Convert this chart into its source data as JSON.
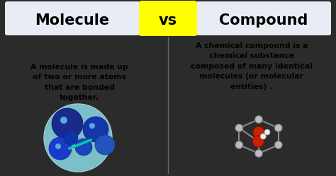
{
  "bg_color": "#2b2b2b",
  "left_header_bg": "#e8ecf5",
  "right_header_bg": "#e8ecf5",
  "vs_bg": "#ffff00",
  "left_title": "Molecule",
  "right_title": "Compound",
  "vs_text": "vs",
  "left_description": "A molecule is made up\nof two or more atoms\nthat are bonded\ntogether.",
  "right_description": "A chemical compound is a\nchemical substance\ncomposed of many identical\nmolecules (or molecular\nentities) .",
  "title_fontsize": 15,
  "desc_fontsize": 7.8,
  "vs_fontsize": 15,
  "divider_color": "#666666"
}
